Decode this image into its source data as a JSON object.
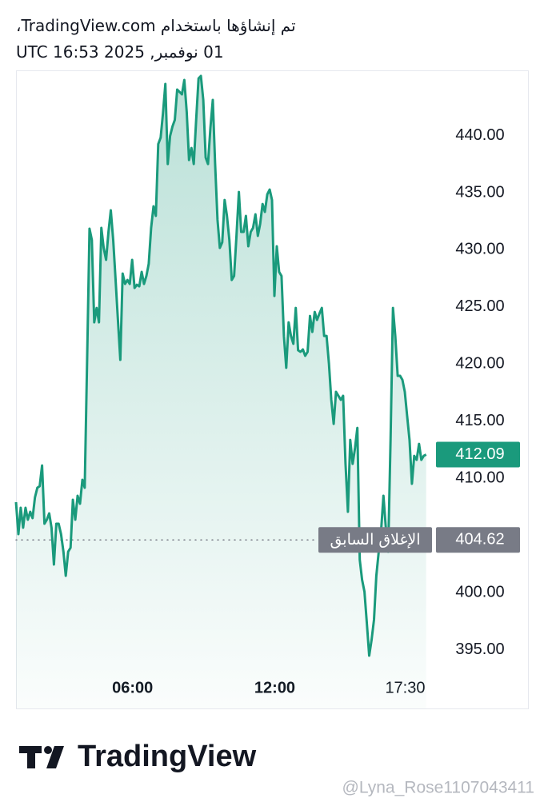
{
  "header": {
    "line1": "تم إنشاؤها باستخدام TradingView.com،",
    "line2": "01 نوفمبر, 2025 16:53 UTC"
  },
  "chart_data": {
    "type": "line",
    "color": "#1a9a7c",
    "x": [
      65,
      71,
      77,
      83,
      89,
      95,
      101,
      107,
      113,
      119,
      125,
      131,
      137,
      143,
      149,
      155,
      161,
      167,
      173,
      179,
      185,
      191,
      197,
      203,
      209,
      215,
      221,
      227,
      233,
      239,
      245,
      251,
      257,
      263,
      269,
      275,
      281,
      287,
      293,
      299,
      305,
      311,
      317,
      323,
      329,
      335,
      341,
      347,
      353,
      359,
      365,
      371,
      377,
      383,
      389,
      395,
      401,
      407,
      413,
      419,
      425,
      431,
      437,
      443,
      449,
      455,
      461,
      467,
      473,
      479,
      485,
      491,
      497,
      503,
      509,
      515,
      521,
      527,
      533,
      539,
      545,
      551,
      557,
      563,
      569,
      575,
      581,
      587,
      593,
      599,
      605,
      611,
      617,
      623,
      629,
      635,
      641,
      647,
      653,
      659,
      665,
      671,
      677,
      683,
      689,
      695,
      701,
      707,
      713,
      719,
      725,
      731,
      737,
      743,
      749,
      755,
      761,
      767,
      773,
      779,
      785,
      791,
      797,
      803,
      809,
      815,
      821,
      827,
      833,
      839,
      845,
      851,
      857,
      863,
      869,
      875,
      881,
      887,
      893,
      899,
      905,
      911,
      917,
      923,
      929,
      935,
      941,
      947,
      953,
      959,
      965,
      971,
      977,
      983,
      989,
      995,
      1001,
      1007,
      1013,
      1019,
      1025,
      1031,
      1037,
      1043,
      1049,
      1055,
      1061,
      1067,
      1073,
      1079,
      1085,
      1091,
      1097,
      1103
    ],
    "values": [
      407.93,
      405.13,
      407.44,
      405.69,
      407.44,
      406.39,
      407.09,
      406.53,
      408.35,
      409.19,
      409.33,
      411.14,
      406.04,
      406.39,
      406.95,
      405.69,
      402.47,
      406.04,
      406.04,
      405.13,
      403.59,
      401.49,
      403.59,
      403.94,
      408.14,
      406.39,
      408.49,
      407.79,
      409.89,
      409.19,
      420.38,
      431.85,
      430.87,
      423.66,
      424.92,
      423.66,
      431.92,
      430.17,
      429.12,
      431.57,
      433.46,
      430.87,
      427.37,
      423.87,
      420.38,
      427.93,
      427.02,
      427.37,
      427.02,
      429.12,
      426.67,
      426.95,
      426.81,
      428.07,
      427.02,
      427.72,
      428.77,
      431.92,
      433.81,
      432.97,
      439.26,
      439.82,
      441.92,
      444.51,
      437.51,
      439.96,
      440.8,
      441.36,
      444.02,
      443.81,
      443.6,
      444.86,
      442.06,
      437.86,
      438.91,
      437.51,
      441.36,
      445.0,
      445.21,
      443.11,
      438.07,
      437.51,
      440.66,
      443.11,
      437.51,
      432.62,
      430.17,
      430.66,
      434.36,
      432.97,
      430.87,
      427.37,
      427.72,
      431.22,
      435.06,
      431.57,
      431.57,
      432.97,
      430.31,
      431.57,
      431.92,
      433.11,
      431.22,
      432.27,
      434.01,
      433.32,
      434.85,
      435.27,
      434.36,
      425.97,
      430.31,
      428.07,
      427.72,
      422.47,
      419.68,
      423.66,
      422.47,
      421.78,
      424.92,
      421.22,
      421.08,
      421.29,
      420.73,
      421.08,
      424.22,
      422.82,
      424.57,
      423.87,
      424.43,
      424.92,
      422.47,
      422.47,
      420.03,
      416.88,
      414.78,
      417.58,
      417.23,
      416.88,
      417.23,
      411.28,
      407.09,
      413.38,
      411.28,
      412.68,
      414.43,
      402.89,
      401.14,
      400.09,
      397.3,
      394.5,
      395.9,
      397.65,
      401.49,
      403.59,
      405.34,
      408.49,
      405.69,
      403.59,
      413.38,
      424.92,
      422.47,
      418.98,
      418.98,
      418.63,
      417.58,
      415.48,
      413.38,
      409.54,
      411.98,
      411.63,
      413.03,
      411.63,
      411.98,
      412.09
    ],
    "xlim": [
      65,
      1128
    ],
    "xticks": [
      {
        "value": 360,
        "label": "06:00"
      },
      {
        "value": 720,
        "label": "12:00"
      },
      {
        "value": 1050,
        "label": "17:30"
      }
    ],
    "ylim": [
      393.1,
      445.7
    ],
    "yticks": [
      {
        "value": 395,
        "label": "395.00"
      },
      {
        "value": 400,
        "label": "400.00"
      },
      {
        "value": 410,
        "label": "410.00"
      },
      {
        "value": 415,
        "label": "415.00"
      },
      {
        "value": 420,
        "label": "420.00"
      },
      {
        "value": 425,
        "label": "425.00"
      },
      {
        "value": 430,
        "label": "430.00"
      },
      {
        "value": 435,
        "label": "435.00"
      },
      {
        "value": 440,
        "label": "440.00"
      }
    ],
    "previous_close": {
      "label": "الإغلاق السابق",
      "value": 404.62
    }
  },
  "footer": {
    "logo": "TradingView",
    "watermark": "@Lyna_Rose1107043411"
  }
}
